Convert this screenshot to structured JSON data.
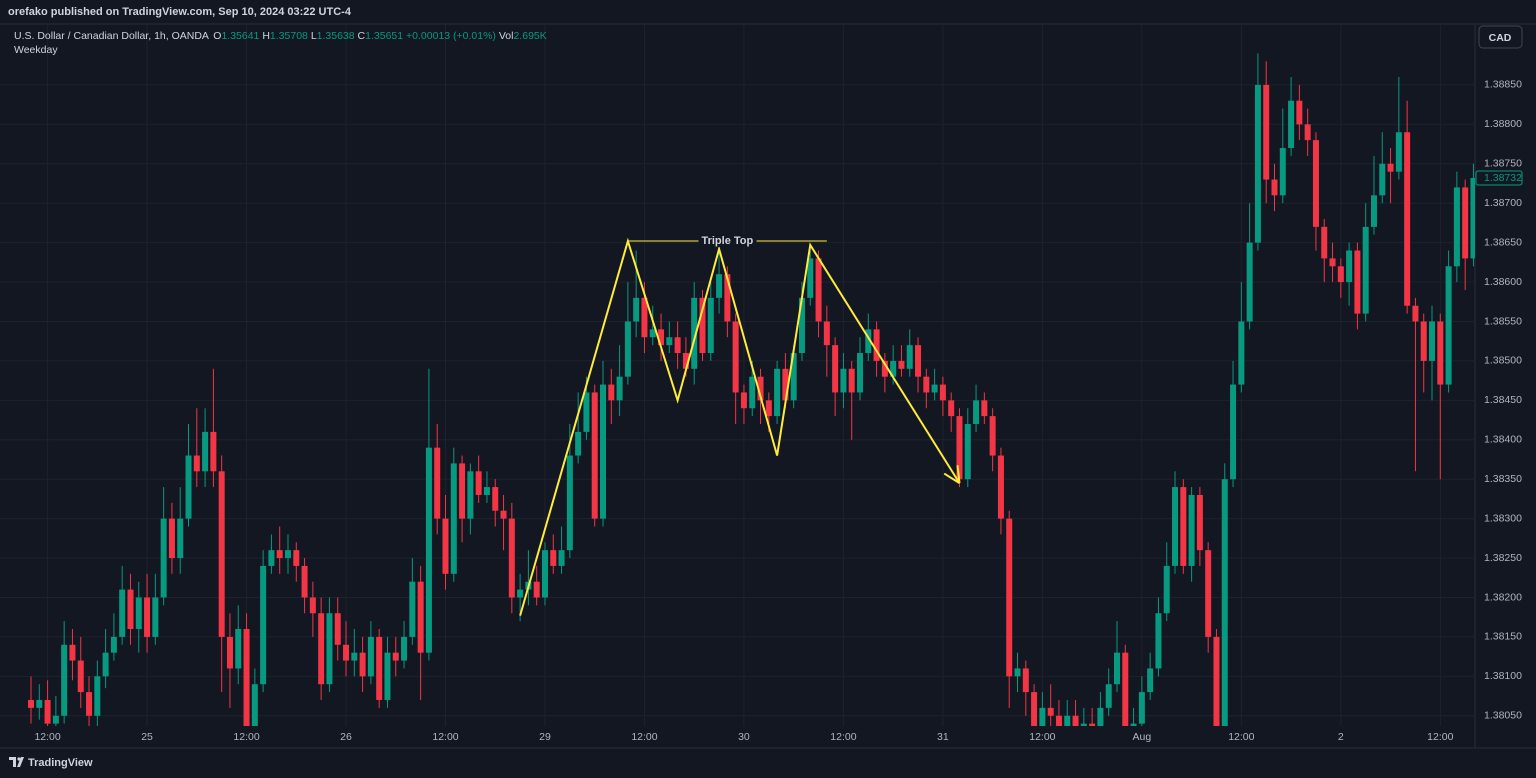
{
  "header": {
    "published": "orefako published on TradingView.com, Sep 10, 2024 03:22 UTC-4",
    "symbol": "U.S. Dollar / Canadian Dollar, 1h, OANDA",
    "ohlc": [
      {
        "label": "O",
        "value": 1.35641
      },
      {
        "label": "H",
        "value": 1.35708
      },
      {
        "label": "L",
        "value": 1.35638
      },
      {
        "label": "C",
        "value": 1.35651
      }
    ],
    "change": "+0.00013 (+0.01%)",
    "volume_label": "Vol",
    "volume": "2.695K",
    "indicator": "Weekday",
    "currency": "CAD"
  },
  "footer": {
    "brand": "TradingView"
  },
  "chart_data": {
    "type": "candlestick",
    "up_color": "#089981",
    "down_color": "#f23645",
    "categories": [
      null,
      null,
      "12:00",
      null,
      null,
      null,
      null,
      null,
      null,
      null,
      null,
      null,
      null,
      null,
      "25",
      null,
      null,
      null,
      null,
      null,
      null,
      null,
      null,
      null,
      null,
      null,
      "12:00",
      null,
      null,
      null,
      null,
      null,
      null,
      null,
      null,
      null,
      null,
      null,
      "26",
      null,
      null,
      null,
      null,
      null,
      null,
      null,
      null,
      null,
      null,
      null,
      "12:00",
      null,
      null,
      null,
      null,
      null,
      null,
      null,
      null,
      null,
      null,
      null,
      "29",
      null,
      null,
      null,
      null,
      null,
      null,
      null,
      null,
      null,
      null,
      null,
      "12:00",
      null,
      null,
      null,
      null,
      null,
      null,
      null,
      null,
      null,
      null,
      null,
      "30",
      null,
      null,
      null,
      null,
      null,
      null,
      null,
      null,
      null,
      null,
      null,
      "12:00",
      null,
      null,
      null,
      null,
      null,
      null,
      null,
      null,
      null,
      null,
      null,
      "31",
      null,
      null,
      null,
      null,
      null,
      null,
      null,
      null,
      null,
      null,
      null,
      "12:00",
      null,
      null,
      null,
      null,
      null,
      null,
      null,
      null,
      null,
      null,
      null,
      "Aug",
      null,
      null,
      null,
      null,
      null,
      null,
      null,
      null,
      null,
      null,
      null,
      "12:00",
      null,
      null,
      null,
      null,
      null,
      null,
      null,
      null,
      null,
      null,
      null,
      "2",
      null,
      null,
      null,
      null,
      null,
      null,
      null,
      null,
      null,
      null,
      null,
      "12:00",
      null,
      null,
      null,
      null
    ],
    "open": [
      1.3807,
      1.3806,
      1.3807,
      1.3804,
      1.3805,
      1.3814,
      1.3812,
      1.3808,
      1.3805,
      1.381,
      1.3813,
      1.3815,
      1.3821,
      1.3816,
      1.382,
      1.3815,
      1.382,
      1.383,
      1.3825,
      1.383,
      1.3838,
      1.3836,
      1.3841,
      1.3836,
      1.3815,
      1.3811,
      1.3816,
      1.3803,
      1.3809,
      1.3824,
      1.3826,
      1.3825,
      1.3826,
      1.3824,
      1.382,
      1.3818,
      1.3809,
      1.3818,
      1.3814,
      1.3812,
      1.3813,
      1.381,
      1.3815,
      1.3807,
      1.3813,
      1.3812,
      1.3815,
      1.3822,
      1.3813,
      1.3839,
      1.383,
      1.3823,
      1.3837,
      1.383,
      1.3836,
      1.3833,
      1.3834,
      1.3831,
      1.383,
      1.382,
      1.3821,
      1.3822,
      1.382,
      1.3826,
      1.3824,
      1.3826,
      1.3838,
      1.3841,
      1.3846,
      1.383,
      1.3847,
      1.3845,
      1.3848,
      1.3855,
      1.3858,
      1.3853,
      1.3854,
      1.3852,
      1.3853,
      1.3851,
      1.3849,
      1.3858,
      1.3851,
      1.3858,
      1.3861,
      1.3855,
      1.3846,
      1.3844,
      1.3848,
      1.3845,
      1.3843,
      1.3849,
      1.3845,
      1.3851,
      1.3858,
      1.3863,
      1.3855,
      1.3852,
      1.3846,
      1.3849,
      1.3846,
      1.3851,
      1.3854,
      1.385,
      1.3848,
      1.385,
      1.3849,
      1.3852,
      1.3848,
      1.3846,
      1.3847,
      1.3845,
      1.3843,
      1.3835,
      1.3842,
      1.3845,
      1.3843,
      1.3838,
      1.383,
      1.381,
      1.3811,
      1.3808,
      1.3803,
      1.3806,
      1.3805,
      1.38,
      1.3805,
      1.3801,
      1.3804,
      1.3802,
      1.3806,
      1.3809,
      1.3813,
      1.3802,
      1.3804,
      1.3808,
      1.3811,
      1.3818,
      1.3824,
      1.3834,
      1.3824,
      1.3833,
      1.3826,
      1.3815,
      1.38,
      1.3835,
      1.3847,
      1.3855,
      1.3865,
      1.3885,
      1.3873,
      1.3871,
      1.3877,
      1.3883,
      1.388,
      1.3878,
      1.3867,
      1.3863,
      1.3862,
      1.386,
      1.3864,
      1.3856,
      1.3867,
      1.3871,
      1.3875,
      1.3874,
      1.3879,
      1.3857,
      1.3855,
      1.385,
      1.3855,
      1.3847,
      1.3862,
      1.3872,
      1.3863
    ],
    "high": [
      1.381,
      1.3809,
      1.38095,
      1.38075,
      1.3817,
      1.3816,
      1.3815,
      1.381,
      1.3812,
      1.3816,
      1.3818,
      1.3824,
      1.3823,
      1.3822,
      1.3823,
      1.3823,
      1.3834,
      1.3832,
      1.3834,
      1.3842,
      1.3844,
      1.3844,
      1.3849,
      1.3838,
      1.3818,
      1.3819,
      1.3818,
      1.3811,
      1.3826,
      1.3828,
      1.3829,
      1.3828,
      1.3827,
      1.3825,
      1.3822,
      1.382,
      1.382,
      1.382,
      1.3817,
      1.3816,
      1.3815,
      1.3817,
      1.3816,
      1.3815,
      1.3815,
      1.3817,
      1.3825,
      1.3824,
      1.3849,
      1.3842,
      1.3833,
      1.3839,
      1.3838,
      1.3837,
      1.3838,
      1.3836,
      1.3835,
      1.3833,
      1.3832,
      1.3823,
      1.3826,
      1.3824,
      1.3827,
      1.3828,
      1.3829,
      1.3842,
      1.3846,
      1.3848,
      1.3847,
      1.385,
      1.3849,
      1.3852,
      1.386,
      1.3864,
      1.386,
      1.3857,
      1.3856,
      1.3855,
      1.3855,
      1.3853,
      1.386,
      1.3859,
      1.386,
      1.3864,
      1.3862,
      1.3856,
      1.3847,
      1.385,
      1.3849,
      1.3846,
      1.385,
      1.3851,
      1.3852,
      1.386,
      1.3864,
      1.3864,
      1.3857,
      1.3853,
      1.3851,
      1.385,
      1.3853,
      1.3856,
      1.3855,
      1.3851,
      1.3852,
      1.3852,
      1.3854,
      1.3853,
      1.3849,
      1.3849,
      1.3848,
      1.3846,
      1.3844,
      1.3844,
      1.3847,
      1.3846,
      1.3844,
      1.3839,
      1.3831,
      1.3813,
      1.3812,
      1.3809,
      1.3808,
      1.3809,
      1.3807,
      1.3807,
      1.3807,
      1.3806,
      1.3806,
      1.3808,
      1.3811,
      1.3817,
      1.3814,
      1.3806,
      1.381,
      1.3813,
      1.382,
      1.3827,
      1.3836,
      1.3835,
      1.3834,
      1.3834,
      1.3827,
      1.3816,
      1.3837,
      1.385,
      1.386,
      1.387,
      1.3889,
      1.3888,
      1.3875,
      1.3882,
      1.3886,
      1.3885,
      1.3882,
      1.3879,
      1.3868,
      1.3865,
      1.3863,
      1.3865,
      1.3865,
      1.387,
      1.3876,
      1.3879,
      1.3877,
      1.3886,
      1.3883,
      1.3858,
      1.3856,
      1.3857,
      1.3856,
      1.3864,
      1.3874,
      1.3873,
      1.3875
    ],
    "low": [
      1.3804,
      1.38045,
      1.38025,
      1.3802,
      1.3804,
      1.38095,
      1.3806,
      1.3803,
      1.38035,
      1.38085,
      1.3812,
      1.3814,
      1.3814,
      1.3813,
      1.3813,
      1.3814,
      1.3819,
      1.3823,
      1.3823,
      1.3829,
      1.3834,
      1.3834,
      1.3834,
      1.3808,
      1.3806,
      1.3809,
      1.3801,
      1.3801,
      1.3808,
      1.3823,
      1.3823,
      1.3823,
      1.3822,
      1.3818,
      1.3815,
      1.3807,
      1.3808,
      1.3812,
      1.381,
      1.381,
      1.3808,
      1.3809,
      1.3806,
      1.3806,
      1.381,
      1.3811,
      1.3814,
      1.3807,
      1.3812,
      1.3828,
      1.3821,
      1.3822,
      1.3827,
      1.3828,
      1.3832,
      1.3832,
      1.3829,
      1.3826,
      1.3818,
      1.3817,
      1.3819,
      1.3819,
      1.3819,
      1.3823,
      1.3823,
      1.3825,
      1.3837,
      1.384,
      1.3829,
      1.3829,
      1.3842,
      1.3843,
      1.3847,
      1.3853,
      1.3851,
      1.3852,
      1.385,
      1.3851,
      1.3849,
      1.3848,
      1.3847,
      1.385,
      1.385,
      1.3856,
      1.3853,
      1.3842,
      1.3842,
      1.3843,
      1.3842,
      1.3841,
      1.3842,
      1.3844,
      1.3844,
      1.385,
      1.3857,
      1.3853,
      1.3848,
      1.3843,
      1.3844,
      1.384,
      1.3845,
      1.385,
      1.3848,
      1.3846,
      1.3847,
      1.3848,
      1.3848,
      1.3846,
      1.3844,
      1.3845,
      1.3843,
      1.3841,
      1.3834,
      1.3834,
      1.3841,
      1.3842,
      1.3836,
      1.3828,
      1.3806,
      1.3808,
      1.3805,
      1.38,
      1.3801,
      1.3803,
      1.3798,
      1.3799,
      1.3799,
      1.38,
      1.38,
      1.3801,
      1.3805,
      1.3808,
      1.3801,
      1.38,
      1.3803,
      1.3807,
      1.381,
      1.3817,
      1.3823,
      1.3823,
      1.3822,
      1.3824,
      1.3813,
      1.3797,
      1.3799,
      1.3834,
      1.3846,
      1.3854,
      1.3864,
      1.387,
      1.3869,
      1.387,
      1.3876,
      1.3878,
      1.3876,
      1.3864,
      1.386,
      1.386,
      1.3858,
      1.3857,
      1.3854,
      1.3855,
      1.3866,
      1.387,
      1.387,
      1.3873,
      1.3856,
      1.3836,
      1.3846,
      1.3845,
      1.3835,
      1.3846,
      1.386,
      1.3859,
      1.3862
    ],
    "close": [
      1.3806,
      1.3807,
      1.3804,
      1.3805,
      1.3814,
      1.3812,
      1.3808,
      1.3805,
      1.381,
      1.3813,
      1.3815,
      1.3821,
      1.3816,
      1.382,
      1.3815,
      1.382,
      1.383,
      1.3825,
      1.383,
      1.3838,
      1.3836,
      1.3841,
      1.3836,
      1.3815,
      1.3811,
      1.3816,
      1.3803,
      1.3809,
      1.3824,
      1.3826,
      1.3825,
      1.3826,
      1.3824,
      1.382,
      1.3818,
      1.3809,
      1.3818,
      1.3814,
      1.3812,
      1.3813,
      1.381,
      1.3815,
      1.3807,
      1.3813,
      1.3812,
      1.3815,
      1.3822,
      1.3813,
      1.3839,
      1.383,
      1.3823,
      1.3837,
      1.383,
      1.3836,
      1.3833,
      1.3834,
      1.3831,
      1.383,
      1.382,
      1.3821,
      1.3822,
      1.382,
      1.3826,
      1.3824,
      1.3826,
      1.3838,
      1.3841,
      1.3846,
      1.383,
      1.3847,
      1.3845,
      1.3848,
      1.3855,
      1.3858,
      1.3853,
      1.3854,
      1.3852,
      1.3853,
      1.3851,
      1.3849,
      1.3858,
      1.3851,
      1.3858,
      1.3861,
      1.3855,
      1.3846,
      1.3844,
      1.3848,
      1.3845,
      1.3843,
      1.3849,
      1.3845,
      1.3851,
      1.3858,
      1.3863,
      1.3855,
      1.3852,
      1.3846,
      1.3849,
      1.3846,
      1.3851,
      1.3854,
      1.385,
      1.3848,
      1.385,
      1.3849,
      1.3852,
      1.3848,
      1.3846,
      1.3847,
      1.3845,
      1.3843,
      1.3835,
      1.3842,
      1.3845,
      1.3843,
      1.3838,
      1.383,
      1.381,
      1.3811,
      1.3808,
      1.3803,
      1.3806,
      1.3805,
      1.38,
      1.3805,
      1.3801,
      1.3804,
      1.3802,
      1.3806,
      1.3809,
      1.3813,
      1.3802,
      1.3804,
      1.3808,
      1.3811,
      1.3818,
      1.3824,
      1.3834,
      1.3824,
      1.3833,
      1.3826,
      1.3815,
      1.38,
      1.3835,
      1.3847,
      1.3855,
      1.3865,
      1.3885,
      1.3873,
      1.3871,
      1.3877,
      1.3883,
      1.388,
      1.3878,
      1.3867,
      1.3863,
      1.3862,
      1.386,
      1.3864,
      1.3856,
      1.3867,
      1.3871,
      1.3875,
      1.3874,
      1.3879,
      1.3857,
      1.3855,
      1.385,
      1.3855,
      1.3847,
      1.3862,
      1.3872,
      1.3863,
      1.38732
    ],
    "ylim": [
      1.38037,
      1.38926
    ],
    "yticks": [
      {
        "value": 1.3805,
        "label": "1.38050"
      },
      {
        "value": 1.381,
        "label": "1.38100"
      },
      {
        "value": 1.3815,
        "label": "1.38150"
      },
      {
        "value": 1.382,
        "label": "1.38200"
      },
      {
        "value": 1.3825,
        "label": "1.38250"
      },
      {
        "value": 1.383,
        "label": "1.38300"
      },
      {
        "value": 1.3835,
        "label": "1.38350"
      },
      {
        "value": 1.384,
        "label": "1.38400"
      },
      {
        "value": 1.3845,
        "label": "1.38450"
      },
      {
        "value": 1.385,
        "label": "1.38500"
      },
      {
        "value": 1.3855,
        "label": "1.38550"
      },
      {
        "value": 1.386,
        "label": "1.38600"
      },
      {
        "value": 1.3865,
        "label": "1.38650"
      },
      {
        "value": 1.387,
        "label": "1.38700"
      },
      {
        "value": 1.3875,
        "label": "1.38750"
      },
      {
        "value": 1.388,
        "label": "1.38800"
      },
      {
        "value": 1.3885,
        "label": "1.38850"
      }
    ],
    "grid": true,
    "last_price": 1.38732,
    "drawing": {
      "label": "Triple Top",
      "color": "#ffeb3b",
      "x": [
        59,
        72,
        78,
        83,
        90,
        94,
        112
      ],
      "y": [
        1.38177,
        1.38652,
        1.3845,
        1.38642,
        1.3838,
        1.38647,
        1.38345
      ],
      "level": 1.38652,
      "level_x": [
        72,
        96
      ]
    }
  }
}
